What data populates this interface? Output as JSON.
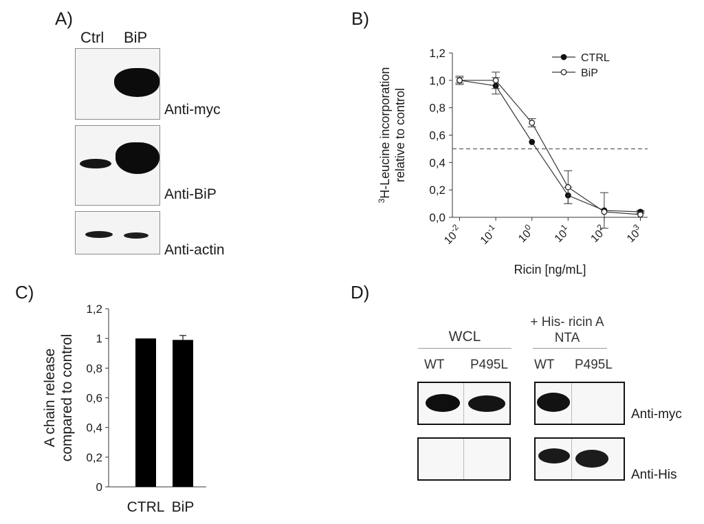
{
  "panelA": {
    "label": "A)",
    "col_ctrl": "Ctrl",
    "col_bip": "BiP",
    "blots": [
      "Anti-myc",
      "Anti-BiP",
      "Anti-actin"
    ]
  },
  "panelB": {
    "label": "B)"
  },
  "panelC": {
    "label": "C)"
  },
  "panelD": {
    "label": "D)",
    "group1": "WCL",
    "group2_line1": "+ His- ricin A",
    "group2_line2": "NTA",
    "lane_wt1": "WT",
    "lane_p1": "P495L",
    "lane_wt2": "WT",
    "lane_p2": "P495L",
    "blot_myc": "Anti-myc",
    "blot_his": "Anti-His"
  },
  "chart_data": [
    {
      "type": "line",
      "panel": "B",
      "title": "",
      "xlabel": "Ricin [ng/mL]",
      "ylabel_sup": "3",
      "ylabel_line1": "H-Leucine incorporation",
      "ylabel_line2": "relative to control",
      "x_scale": "log",
      "x": [
        0.01,
        0.1,
        1,
        10,
        100,
        1000
      ],
      "xtick_base": [
        "10",
        "10",
        "10",
        "10",
        "10",
        "10"
      ],
      "xtick_exp": [
        "-2",
        "-1",
        "0",
        "1",
        "2",
        "3"
      ],
      "yticks": [
        "0,0",
        "0,2",
        "0,4",
        "0,6",
        "0,8",
        "1,0",
        "1,2"
      ],
      "ylim": [
        0,
        1.2
      ],
      "series": [
        {
          "name": "CTRL",
          "marker": "filled",
          "values": [
            1.0,
            0.96,
            0.55,
            0.16,
            0.05,
            0.04
          ],
          "err": [
            0.02,
            0.06,
            0.0,
            0.06,
            0.13,
            0.01
          ]
        },
        {
          "name": "BiP",
          "marker": "open",
          "values": [
            1.0,
            1.0,
            0.69,
            0.22,
            0.04,
            0.02
          ],
          "err": [
            0.03,
            0.06,
            0.03,
            0.12,
            0.0,
            0.02
          ]
        }
      ],
      "reference_line": 0.5,
      "legend_position": "top-right",
      "grid": false
    },
    {
      "type": "bar",
      "panel": "C",
      "title": "",
      "categories": [
        "CTRL",
        "BiP"
      ],
      "values": [
        1.0,
        0.99
      ],
      "err": [
        0.0,
        0.03
      ],
      "ylabel_line1": "A chain release",
      "ylabel_line2": "compared to control",
      "yticks": [
        "0",
        "0,2",
        "0,4",
        "0,6",
        "0,8",
        "1",
        "1,2"
      ],
      "ylim": [
        0,
        1.2
      ],
      "bar_color": "#000000",
      "grid": false
    }
  ]
}
